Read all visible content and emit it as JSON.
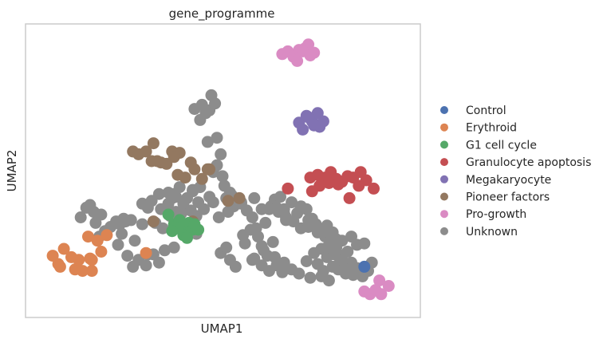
{
  "chart_data": {
    "type": "scatter",
    "title": "gene_programme",
    "xlabel": "UMAP1",
    "ylabel": "UMAP2",
    "xlim": [
      0,
      100
    ],
    "ylim": [
      0,
      100
    ],
    "x_ticks": false,
    "y_ticks": false,
    "grid": false,
    "legend_position": "right",
    "series": [
      {
        "name": "Control",
        "color": "#4c72b0",
        "x": [
          88.0
        ],
        "y": [
          15.0
        ]
      },
      {
        "name": "Erythroid",
        "color": "#dd8452",
        "x": [
          4.5,
          6.0,
          7.5,
          9.5,
          6.5,
          10.5,
          12.5,
          11.5,
          15.0,
          14.0,
          16.5,
          19.0,
          17.5,
          15.0,
          14.5,
          29.5
        ],
        "y": [
          19.0,
          16.0,
          21.5,
          18.5,
          15.0,
          14.0,
          13.5,
          17.5,
          17.5,
          26.0,
          24.5,
          26.5,
          20.5,
          13.5,
          18.0,
          20.0
        ]
      },
      {
        "name": "G1 cell cycle",
        "color": "#55a868",
        "x": [
          35.5,
          37.0,
          38.5,
          40.0,
          41.0,
          42.0,
          39.5,
          38.0,
          43.5,
          36.5,
          40.5,
          42.5
        ],
        "y": [
          34.0,
          30.5,
          32.0,
          29.5,
          31.0,
          28.5,
          26.5,
          29.0,
          28.5,
          28.0,
          25.5,
          30.5
        ]
      },
      {
        "name": "Granulocyte apoptosis",
        "color": "#c44e52",
        "x": [
          67.5,
          73.5,
          75.5,
          77.5,
          79.0,
          80.5,
          82.0,
          83.5,
          85.0,
          87.0,
          88.5,
          90.5,
          86.5,
          84.0,
          78.5,
          76.0,
          74.0,
          81.0
        ],
        "y": [
          43.5,
          47.5,
          48.5,
          47.5,
          49.5,
          47.0,
          46.0,
          48.0,
          47.5,
          49.5,
          46.5,
          43.5,
          44.5,
          40.0,
          45.5,
          44.5,
          42.5,
          45.0
        ]
      },
      {
        "name": "Megakaryocyte",
        "color": "#8172b3",
        "x": [
          70.5,
          72.5,
          74.0,
          75.5,
          77.0,
          73.0,
          76.0,
          71.5,
          74.5
        ],
        "y": [
          67.5,
          70.0,
          68.0,
          71.0,
          68.0,
          69.5,
          66.0,
          65.0,
          66.5
        ]
      },
      {
        "name": "Pioneer factors",
        "color": "#937860",
        "x": [
          26.0,
          27.5,
          29.5,
          31.5,
          32.5,
          36.5,
          38.5,
          41.5,
          42.5,
          37.0,
          38.0,
          40.0,
          44.5,
          46.5,
          46.0,
          35.0,
          31.0,
          33.5,
          54.5,
          51.5,
          31.5,
          42.0
        ],
        "y": [
          57.0,
          56.0,
          57.0,
          60.0,
          53.5,
          57.0,
          56.5,
          53.0,
          50.5,
          55.0,
          48.5,
          47.5,
          47.0,
          50.5,
          50.5,
          52.5,
          53.5,
          53.0,
          40.0,
          39.0,
          31.5,
          31.5
        ]
      },
      {
        "name": "Pro-growth",
        "color": "#da8bc3",
        "x": [
          66.0,
          67.5,
          69.0,
          70.5,
          72.0,
          73.0,
          74.5,
          70.0,
          71.5,
          73.5,
          88.0,
          89.5,
          91.0,
          92.5,
          94.5,
          92.0
        ],
        "y": [
          92.5,
          93.5,
          91.5,
          94.0,
          94.5,
          96.0,
          93.0,
          90.0,
          93.5,
          92.0,
          6.0,
          5.0,
          6.5,
          5.0,
          8.0,
          10.0
        ]
      },
      {
        "name": "Unknown",
        "color": "#8c8c8c",
        "x": [
          42.5,
          44.5,
          46.5,
          48.0,
          44.0,
          45.5,
          47.0,
          46.0,
          48.5,
          49.5,
          48.5,
          47.5,
          50.0,
          50.5,
          52.0,
          51.0,
          53.0,
          51.5,
          49.0,
          43.5,
          45.0,
          40.5,
          42.0,
          37.5,
          39.5,
          41.5,
          43.0,
          39.0,
          33.0,
          35.5,
          30.0,
          33.5,
          36.0,
          32.0,
          34.0,
          28.5,
          26.5,
          24.0,
          25.5,
          23.0,
          22.0,
          24.5,
          27.5,
          26.0,
          29.5,
          30.0,
          33.0,
          34.5,
          37.0,
          31.5,
          55.0,
          56.5,
          58.0,
          57.5,
          59.5,
          55.5,
          61.0,
          62.0,
          60.5,
          63.5,
          64.0,
          58.0,
          59.0,
          61.5,
          62.5,
          64.0,
          65.5,
          65.0,
          67.0,
          66.5,
          68.5,
          70.0,
          69.0,
          71.0,
          72.5,
          74.0,
          73.0,
          75.5,
          77.5,
          79.0,
          76.5,
          78.0,
          80.5,
          82.0,
          83.5,
          81.5,
          84.5,
          86.0,
          85.0,
          87.5,
          89.0,
          79.5,
          76.5,
          78.5,
          73.5,
          70.5,
          68.5,
          66.5,
          75.5,
          77.0,
          83.0,
          72.5,
          74.5,
          78.0,
          80.0,
          81.0,
          82.0,
          83.0,
          66.0,
          60.5,
          52.0,
          53.5,
          49.5,
          51.0,
          56.0,
          58.5,
          62.5,
          64.5,
          12.0,
          13.5,
          14.5,
          15.5,
          17.5,
          16.0,
          18.5,
          17.0,
          20.0,
          21.5,
          22.5,
          23.5,
          35.5,
          36.5,
          31.0,
          28.5,
          42.0,
          44.0,
          46.5,
          47.5,
          52.5,
          55.0,
          60.5,
          58.5,
          63.0,
          64.5,
          66.5,
          67.0,
          71.0,
          73.0,
          75.0,
          76.5,
          78.0,
          79.5,
          80.5,
          82.0,
          84.5,
          86.0,
          88.0,
          90.0,
          37.5,
          39.5,
          41.0,
          43.0,
          37.0,
          38.5
        ],
        "y": [
          72.5,
          74.0,
          72.0,
          74.5,
          68.5,
          71.0,
          77.5,
          60.5,
          62.0,
          56.0,
          52.0,
          49.5,
          48.0,
          44.5,
          42.0,
          40.0,
          37.0,
          35.0,
          33.0,
          38.5,
          36.0,
          40.0,
          43.0,
          40.5,
          38.0,
          35.5,
          33.5,
          34.5,
          41.5,
          42.0,
          36.5,
          36.0,
          33.5,
          31.0,
          29.0,
          30.5,
          24.5,
          31.5,
          32.0,
          27.0,
          23.0,
          19.0,
          17.5,
          15.0,
          15.5,
          19.5,
          16.5,
          21.0,
          22.0,
          19.5,
          38.5,
          35.5,
          33.0,
          28.5,
          26.0,
          26.5,
          21.0,
          19.0,
          22.5,
          24.0,
          18.5,
          17.5,
          29.0,
          31.0,
          36.0,
          39.5,
          40.5,
          35.0,
          32.0,
          36.0,
          38.5,
          34.5,
          31.5,
          29.0,
          36.0,
          32.5,
          29.5,
          27.5,
          26.0,
          24.5,
          21.5,
          18.5,
          22.0,
          19.0,
          20.5,
          17.0,
          16.5,
          14.5,
          12.0,
          11.5,
          13.5,
          15.0,
          11.5,
          10.0,
          11.0,
          12.5,
          14.0,
          16.5,
          16.0,
          13.5,
          14.0,
          17.0,
          20.0,
          22.0,
          19.5,
          14.0,
          17.5,
          12.5,
          13.0,
          15.5,
          17.5,
          15.0,
          20.0,
          22.0,
          23.5,
          18.0,
          13.5,
          15.5,
          33.0,
          36.5,
          37.5,
          35.0,
          34.0,
          31.0,
          28.0,
          26.0,
          29.5,
          31.5,
          30.5,
          32.5,
          38.0,
          40.0,
          39.0,
          38.0,
          42.5,
          44.0,
          40.5,
          38.5,
          41.0,
          38.0,
          36.0,
          40.0,
          37.0,
          36.5,
          34.5,
          33.0,
          37.0,
          32.0,
          30.5,
          28.0,
          30.0,
          27.5,
          25.0,
          24.5,
          26.0,
          23.0,
          23.5,
          16.5,
          35.0,
          30.0,
          29.0,
          27.0,
          41.5,
          44.0
        ]
      }
    ]
  }
}
